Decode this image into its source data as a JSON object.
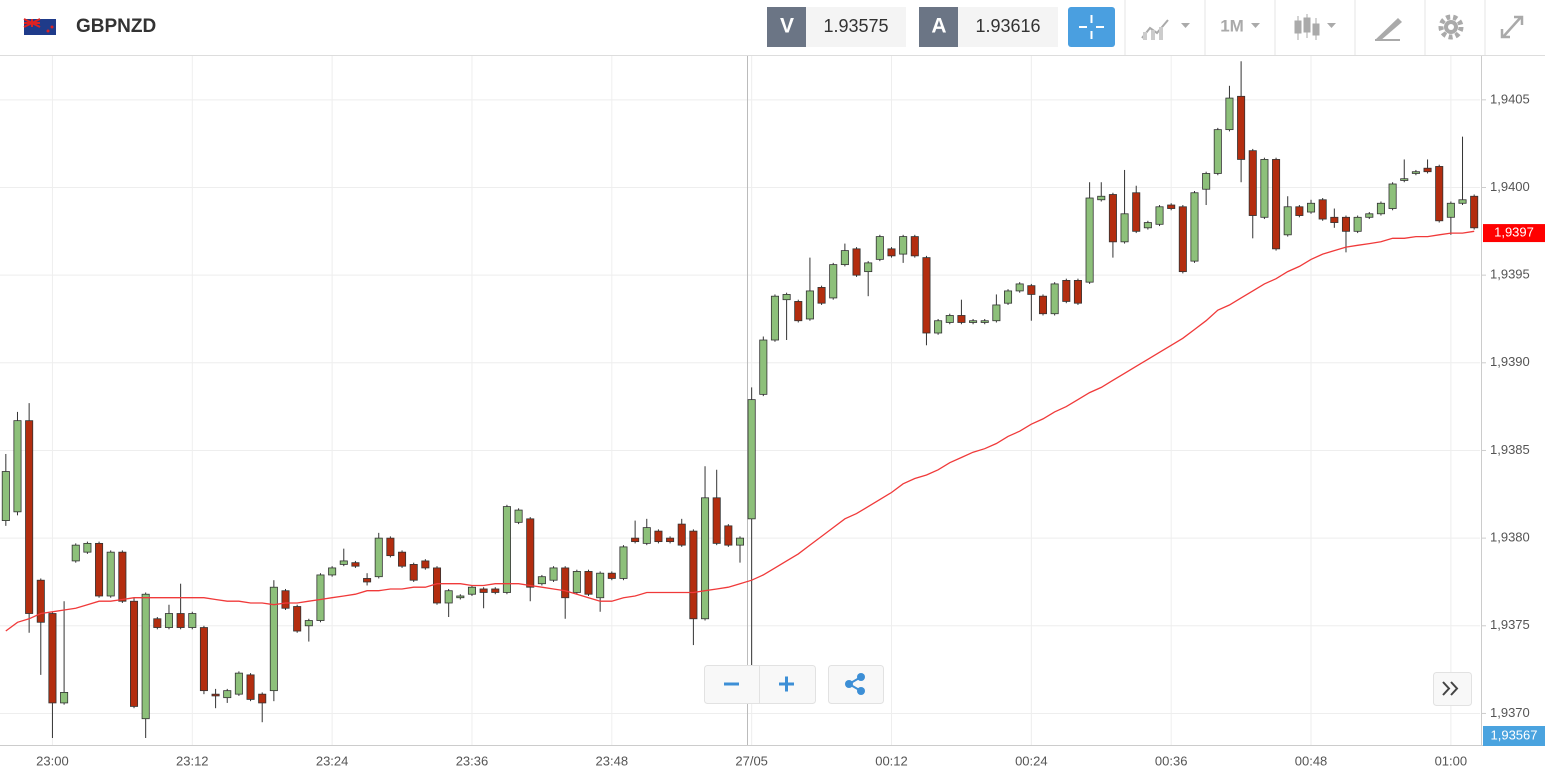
{
  "toolbar": {
    "symbol": "GBPNZD",
    "bid_label": "V",
    "bid": "1.93575",
    "ask_label": "A",
    "ask": "1.93616",
    "timeframe": "1M"
  },
  "ui": {
    "price_marker": "1,93567"
  },
  "chart_data": {
    "type": "candlestick",
    "categories": [
      null,
      null,
      null,
      null,
      "23:00",
      null,
      null,
      null,
      null,
      null,
      null,
      null,
      null,
      null,
      null,
      null,
      "23:12",
      null,
      null,
      null,
      null,
      null,
      null,
      null,
      null,
      null,
      null,
      null,
      "23:24",
      null,
      null,
      null,
      null,
      null,
      null,
      null,
      null,
      null,
      null,
      null,
      "23:36",
      null,
      null,
      null,
      null,
      null,
      null,
      null,
      null,
      null,
      null,
      null,
      "23:48",
      null,
      null,
      null,
      null,
      null,
      null,
      null,
      null,
      null,
      null,
      null,
      "27/05",
      null,
      null,
      null,
      null,
      null,
      null,
      null,
      null,
      null,
      null,
      null,
      "00:12",
      null,
      null,
      null,
      null,
      null,
      null,
      null,
      null,
      null,
      null,
      null,
      "00:24",
      null,
      null,
      null,
      null,
      null,
      null,
      null,
      null,
      null,
      null,
      null,
      "00:36",
      null,
      null,
      null,
      null,
      null,
      null,
      null,
      null,
      null,
      null,
      null,
      "00:48",
      null,
      null,
      null,
      null,
      null,
      null,
      null,
      null,
      null,
      null,
      null,
      "01:00",
      null,
      null
    ],
    "open": [
      1.9381,
      1.93815,
      1.93867,
      1.93776,
      1.93757,
      1.93706,
      1.93787,
      1.93792,
      1.93797,
      1.93767,
      1.93792,
      1.93764,
      1.93697,
      1.93754,
      1.93749,
      1.93757,
      1.93749,
      1.93749,
      1.93711,
      1.93709,
      1.93711,
      1.93722,
      1.93711,
      1.93713,
      1.9377,
      1.93761,
      1.9375,
      1.93753,
      1.93779,
      1.93785,
      1.93786,
      1.93777,
      1.93778,
      1.938,
      1.93792,
      1.93785,
      1.93787,
      1.93783,
      1.93763,
      1.93766,
      1.93768,
      1.93771,
      1.93771,
      1.93769,
      1.93809,
      1.93811,
      1.93774,
      1.93776,
      1.93783,
      1.93769,
      1.93781,
      1.93766,
      1.9378,
      1.93777,
      1.938,
      1.93797,
      1.93804,
      1.938,
      1.93808,
      1.93804,
      1.93754,
      1.93823,
      1.93807,
      1.93796,
      1.93811,
      1.93882,
      1.93913,
      1.93936,
      1.93935,
      1.93925,
      1.93943,
      1.93937,
      1.93956,
      1.93965,
      1.93952,
      1.93959,
      1.93965,
      1.93962,
      1.93972,
      1.9396,
      1.93917,
      1.93923,
      1.93927,
      1.93923,
      1.93923,
      1.93924,
      1.93934,
      1.93941,
      1.93944,
      1.93938,
      1.93928,
      1.93947,
      1.93947,
      1.93946,
      1.93993,
      1.93996,
      1.93969,
      1.93997,
      1.93977,
      1.93979,
      1.9399,
      1.93989,
      1.93958,
      1.93999,
      1.94008,
      1.94033,
      1.94052,
      1.94021,
      1.93983,
      1.94016,
      1.93973,
      1.93989,
      1.93986,
      1.93993,
      1.93983,
      1.93983,
      1.93975,
      1.93983,
      1.93985,
      1.93988,
      1.94004,
      1.94008,
      1.94011,
      1.94012,
      1.93983,
      1.93991,
      1.93995
    ],
    "high": [
      1.93848,
      1.93872,
      1.93877,
      1.93777,
      1.93758,
      1.93764,
      1.93797,
      1.93798,
      1.93798,
      1.93793,
      1.93793,
      1.93766,
      1.93769,
      1.93755,
      1.93762,
      1.93774,
      1.93758,
      1.9375,
      1.93714,
      1.93714,
      1.93724,
      1.93723,
      1.93712,
      1.93776,
      1.93771,
      1.93762,
      1.93754,
      1.9378,
      1.93784,
      1.93794,
      1.93787,
      1.9378,
      1.93803,
      1.93801,
      1.93793,
      1.93786,
      1.93788,
      1.93784,
      1.93771,
      1.93768,
      1.93773,
      1.93772,
      1.93772,
      1.93819,
      1.93817,
      1.93812,
      1.93779,
      1.93784,
      1.93784,
      1.93782,
      1.93782,
      1.93781,
      1.93781,
      1.93796,
      1.9381,
      1.93811,
      1.93805,
      1.93801,
      1.93811,
      1.93805,
      1.93841,
      1.93839,
      1.93808,
      1.93801,
      1.93886,
      1.93915,
      1.93939,
      1.9394,
      1.93936,
      1.9396,
      1.93944,
      1.93957,
      1.93968,
      1.93966,
      1.93958,
      1.93973,
      1.93966,
      1.93973,
      1.93973,
      1.93961,
      1.93925,
      1.93928,
      1.93936,
      1.93925,
      1.93925,
      1.93939,
      1.93942,
      1.93946,
      1.93945,
      1.93939,
      1.93946,
      1.93948,
      1.93948,
      1.94003,
      1.94003,
      1.93997,
      1.9401,
      1.94001,
      1.93981,
      1.9399,
      1.93991,
      1.9399,
      1.93998,
      1.94009,
      1.94034,
      1.94058,
      1.94072,
      1.94022,
      1.94017,
      1.94017,
      1.93995,
      1.9399,
      1.93993,
      1.93994,
      1.93988,
      1.93984,
      1.93984,
      1.93986,
      1.93992,
      1.94003,
      1.94016,
      1.9401,
      1.94016,
      1.94013,
      1.93992,
      1.94029,
      1.93996
    ],
    "low": [
      1.93807,
      1.93813,
      1.93746,
      1.93722,
      1.93686,
      1.93705,
      1.93786,
      1.93791,
      1.93766,
      1.93766,
      1.93763,
      1.93703,
      1.93686,
      1.93748,
      1.93748,
      1.93748,
      1.93748,
      1.93711,
      1.93703,
      1.93706,
      1.9371,
      1.93707,
      1.93695,
      1.93707,
      1.93759,
      1.93746,
      1.93741,
      1.93752,
      1.93778,
      1.93784,
      1.93783,
      1.93773,
      1.93777,
      1.93789,
      1.93783,
      1.93775,
      1.93782,
      1.93762,
      1.93755,
      1.93765,
      1.93767,
      1.9376,
      1.93768,
      1.93768,
      1.93808,
      1.93764,
      1.93773,
      1.93775,
      1.93754,
      1.93768,
      1.93767,
      1.93758,
      1.93776,
      1.93776,
      1.93797,
      1.93796,
      1.93797,
      1.93797,
      1.93795,
      1.93739,
      1.93753,
      1.93796,
      1.93795,
      1.93786,
      1.93719,
      1.93881,
      1.93912,
      1.93913,
      1.93923,
      1.93924,
      1.93933,
      1.93936,
      1.93955,
      1.93949,
      1.93938,
      1.93958,
      1.9396,
      1.93957,
      1.9396,
      1.9391,
      1.93916,
      1.93922,
      1.93922,
      1.93922,
      1.93922,
      1.93923,
      1.93933,
      1.9394,
      1.93924,
      1.93927,
      1.93927,
      1.93934,
      1.93933,
      1.93945,
      1.93992,
      1.9396,
      1.93968,
      1.93974,
      1.93976,
      1.93978,
      1.93987,
      1.93951,
      1.93957,
      1.9399,
      1.94007,
      1.94032,
      1.94003,
      1.93971,
      1.93982,
      1.93964,
      1.93972,
      1.93983,
      1.93985,
      1.93981,
      1.93977,
      1.93963,
      1.93974,
      1.93982,
      1.93984,
      1.93987,
      1.94003,
      1.94007,
      1.94008,
      1.9398,
      1.93973,
      1.9399,
      1.93976
    ],
    "close": [
      1.93838,
      1.93867,
      1.93757,
      1.93752,
      1.93706,
      1.93712,
      1.93796,
      1.93797,
      1.93767,
      1.93792,
      1.93764,
      1.93704,
      1.93768,
      1.93749,
      1.93757,
      1.93749,
      1.93757,
      1.93713,
      1.9371,
      1.93713,
      1.93723,
      1.93708,
      1.93706,
      1.93772,
      1.9376,
      1.93747,
      1.93753,
      1.93779,
      1.93783,
      1.93787,
      1.93784,
      1.93775,
      1.938,
      1.9379,
      1.93784,
      1.93776,
      1.93783,
      1.93763,
      1.9377,
      1.93767,
      1.93772,
      1.93769,
      1.93769,
      1.93818,
      1.93816,
      1.93772,
      1.93778,
      1.93783,
      1.93766,
      1.93781,
      1.93768,
      1.9378,
      1.93777,
      1.93795,
      1.93798,
      1.93806,
      1.93798,
      1.93798,
      1.93796,
      1.93754,
      1.93823,
      1.93797,
      1.93796,
      1.938,
      1.93879,
      1.93913,
      1.93938,
      1.93939,
      1.93924,
      1.93941,
      1.93934,
      1.93956,
      1.93964,
      1.9395,
      1.93957,
      1.93972,
      1.93961,
      1.93972,
      1.93961,
      1.93917,
      1.93924,
      1.93927,
      1.93923,
      1.93924,
      1.93924,
      1.93933,
      1.93941,
      1.93945,
      1.93939,
      1.93928,
      1.93945,
      1.93935,
      1.93934,
      1.93994,
      1.93995,
      1.93969,
      1.93985,
      1.93975,
      1.9398,
      1.93989,
      1.93988,
      1.93952,
      1.93997,
      1.94008,
      1.94033,
      1.94051,
      1.94016,
      1.93984,
      1.94016,
      1.93965,
      1.93989,
      1.93984,
      1.93991,
      1.93982,
      1.9398,
      1.93975,
      1.93983,
      1.93985,
      1.93991,
      1.94002,
      1.94005,
      1.94009,
      1.94009,
      1.93981,
      1.93991,
      1.93993,
      1.93977
    ],
    "up_color": "#8dc07a",
    "down_color": "#b32d0f",
    "ma": {
      "color": "#f03a3a",
      "values": [
        1.93747,
        1.93752,
        1.93754,
        1.93757,
        1.93758,
        1.93759,
        1.9376,
        1.93762,
        1.93764,
        1.93764,
        1.93765,
        1.93766,
        1.93766,
        1.93766,
        1.93766,
        1.93766,
        1.93766,
        1.93766,
        1.93765,
        1.93764,
        1.93764,
        1.93763,
        1.93763,
        1.93762,
        1.93763,
        1.93763,
        1.93764,
        1.93765,
        1.93766,
        1.93767,
        1.93768,
        1.9377,
        1.9377,
        1.93771,
        1.93771,
        1.93772,
        1.93772,
        1.93774,
        1.93774,
        1.93774,
        1.93773,
        1.93773,
        1.93774,
        1.93774,
        1.93774,
        1.93773,
        1.93772,
        1.93771,
        1.9377,
        1.93768,
        1.93766,
        1.93764,
        1.93764,
        1.93766,
        1.93767,
        1.93769,
        1.93769,
        1.93769,
        1.93769,
        1.93769,
        1.9377,
        1.93771,
        1.93772,
        1.93774,
        1.93776,
        1.93779,
        1.93783,
        1.93787,
        1.93791,
        1.93796,
        1.93801,
        1.93806,
        1.93811,
        1.93814,
        1.93818,
        1.93822,
        1.93826,
        1.93831,
        1.93834,
        1.93836,
        1.93839,
        1.93843,
        1.93846,
        1.93849,
        1.93851,
        1.93854,
        1.93858,
        1.93861,
        1.93865,
        1.93868,
        1.93872,
        1.93875,
        1.93879,
        1.93883,
        1.93886,
        1.9389,
        1.93894,
        1.93898,
        1.93902,
        1.93906,
        1.9391,
        1.93914,
        1.93919,
        1.93924,
        1.9393,
        1.93933,
        1.93937,
        1.93941,
        1.93945,
        1.93948,
        1.93952,
        1.93955,
        1.93959,
        1.93962,
        1.93964,
        1.93966,
        1.93967,
        1.93968,
        1.93969,
        1.93971,
        1.93971,
        1.93972,
        1.93972,
        1.93973,
        1.93974,
        1.93974,
        1.93975
      ]
    },
    "last_price": {
      "value": 1.93974,
      "label": "1,9397"
    },
    "ylim": [
      1.93682,
      1.94075
    ],
    "yticks": [
      {
        "value": 1.937,
        "label": "1,9370"
      },
      {
        "value": 1.9375,
        "label": "1,9375"
      },
      {
        "value": 1.938,
        "label": "1,9380"
      },
      {
        "value": 1.9385,
        "label": "1,9385"
      },
      {
        "value": 1.939,
        "label": "1,9390"
      },
      {
        "value": 1.9395,
        "label": "1,9395"
      },
      {
        "value": 1.94,
        "label": "1,9400"
      },
      {
        "value": 1.9405,
        "label": "1,9405"
      }
    ],
    "grid": true
  }
}
